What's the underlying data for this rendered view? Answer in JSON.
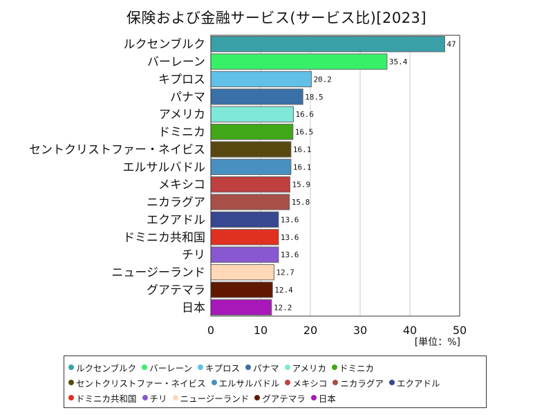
{
  "chart_data": {
    "type": "bar",
    "orientation": "horizontal",
    "title": "保険および金融サービス(サービス比)[2023]",
    "unit_label": "[単位：%]",
    "xlim": [
      0,
      50
    ],
    "xticks": [
      "0",
      "10",
      "20",
      "30",
      "40",
      "50"
    ],
    "grid": "vertical",
    "legend_position": "bottom",
    "categories": [
      "ルクセンブルク",
      "バーレーン",
      "キプロス",
      "パナマ",
      "アメリカ",
      "ドミニカ",
      "セントクリストファー・ネイビス",
      "エルサルバドル",
      "メキシコ",
      "ニカラグア",
      "エクアドル",
      "ドミニカ共和国",
      "チリ",
      "ニュージーランド",
      "グアテマラ",
      "日本"
    ],
    "values": [
      47,
      35.4,
      20.2,
      18.5,
      16.6,
      16.5,
      16.1,
      16.1,
      15.9,
      15.8,
      13.6,
      13.6,
      13.6,
      12.7,
      12.4,
      12.2
    ],
    "value_labels": [
      "47",
      "35.4",
      "20.2",
      "18.5",
      "16.6",
      "16.5",
      "16.1",
      "16.1",
      "15.9",
      "15.8",
      "13.6",
      "13.6",
      "13.6",
      "12.7",
      "12.4",
      "12.2"
    ],
    "colors": [
      "#3aa0a8",
      "#38f068",
      "#60c0e8",
      "#3a70a8",
      "#80e8d8",
      "#40a818",
      "#584810",
      "#4890c0",
      "#c04040",
      "#a85048",
      "#384890",
      "#e03020",
      "#8858d0",
      "#ffd8b8",
      "#601800",
      "#a818b8"
    ]
  }
}
